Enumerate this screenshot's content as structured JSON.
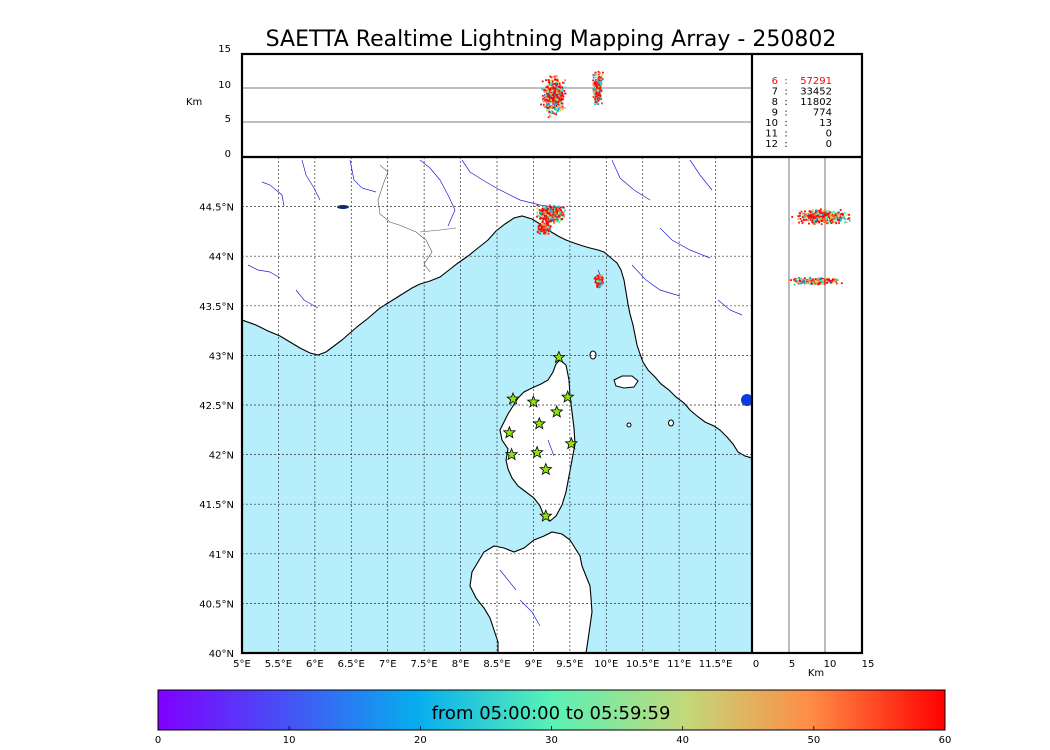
{
  "title": "SAETTA Realtime Lightning Mapping Array - 250802",
  "colors": {
    "sea": "#b7eefc",
    "land": "#ffffff",
    "coast": "#000000",
    "river": "#2020d0",
    "border": "#555555",
    "grid": "#555555",
    "station_fill": "#8fe30a",
    "highlight": "#ff0000"
  },
  "altitude_panel": {
    "ylabel": "Km",
    "yticks": [
      "0",
      "5",
      "10",
      "15"
    ],
    "ylim": [
      0,
      15
    ]
  },
  "map_panel": {
    "lon_ticks": [
      "5°E",
      "5.5°E",
      "6°E",
      "6.5°E",
      "7°E",
      "7.5°E",
      "8°E",
      "8.5°E",
      "9°E",
      "9.5°E",
      "10°E",
      "10.5°E",
      "11°E",
      "11.5°E"
    ],
    "lat_ticks": [
      "40°N",
      "40.5°N",
      "41°N",
      "41.5°N",
      "42°N",
      "42.5°N",
      "43°N",
      "43.5°N",
      "44°N",
      "44.5°N"
    ],
    "lon_range": [
      5,
      12
    ],
    "lat_range": [
      40,
      45
    ]
  },
  "side_panel": {
    "xlabel": "Km",
    "xticks": [
      "0",
      "5",
      "10",
      "15"
    ],
    "xlim": [
      0,
      15
    ]
  },
  "station_counts": [
    {
      "stations": "6",
      "count": "57291"
    },
    {
      "stations": "7",
      "count": "33452"
    },
    {
      "stations": "8",
      "count": "11802"
    },
    {
      "stations": "9",
      "count": "774"
    },
    {
      "stations": "10",
      "count": "13"
    },
    {
      "stations": "11",
      "count": "0"
    },
    {
      "stations": "12",
      "count": "0"
    }
  ],
  "stations": [
    {
      "lon": 9.35,
      "lat": 42.98
    },
    {
      "lon": 8.72,
      "lat": 42.56
    },
    {
      "lon": 9.0,
      "lat": 42.53
    },
    {
      "lon": 9.47,
      "lat": 42.58
    },
    {
      "lon": 9.32,
      "lat": 42.43
    },
    {
      "lon": 9.08,
      "lat": 42.31
    },
    {
      "lon": 8.67,
      "lat": 42.22
    },
    {
      "lon": 9.52,
      "lat": 42.11
    },
    {
      "lon": 8.7,
      "lat": 42.0
    },
    {
      "lon": 9.05,
      "lat": 42.02
    },
    {
      "lon": 9.17,
      "lat": 41.85
    },
    {
      "lon": 9.17,
      "lat": 41.38
    }
  ],
  "colorbar": {
    "label": "from 05:00:00 to 05:59:59",
    "ticks": [
      "0",
      "10",
      "20",
      "30",
      "40",
      "50",
      "60"
    ],
    "range": [
      0,
      60
    ]
  }
}
